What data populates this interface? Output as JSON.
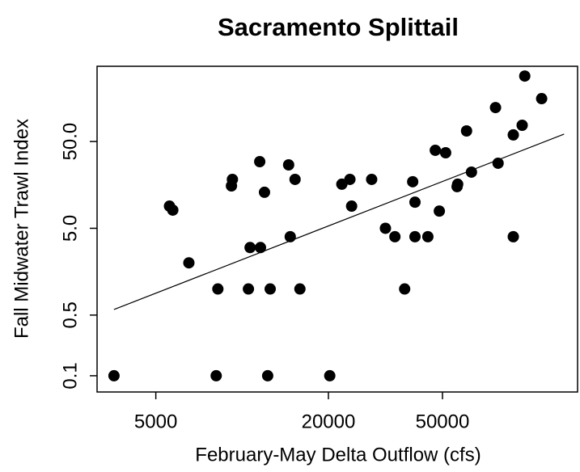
{
  "chart_data": {
    "type": "scatter",
    "title": "Sacramento Splittail",
    "x_label": "February-May Delta Outflow (cfs)",
    "y_label": "Fall Midwater Trawl Index",
    "xscale": "log",
    "yscale": "log",
    "color": "#000000",
    "x": [
      3573,
      5580,
      5730,
      6520,
      8230,
      8120,
      9180,
      9250,
      10660,
      10520,
      11520,
      11590,
      11970,
      12280,
      12530,
      14530,
      14720,
      15300,
      15910,
      20220,
      22280,
      23770,
      24100,
      28310,
      31620,
      34120,
      36900,
      39360,
      40090,
      40090,
      44460,
      47200,
      51290,
      48750,
      56230,
      56490,
      60670,
      63100,
      76560,
      78160,
      88310,
      88310,
      94840,
      96830,
      110900
    ],
    "y": [
      0.1,
      9.0,
      8.1,
      2.0,
      1.0,
      0.1,
      15.4,
      18.3,
      3.0,
      1.0,
      29.3,
      3.0,
      13.0,
      0.1,
      1.0,
      26.9,
      4.0,
      18.3,
      1.0,
      0.1,
      16.1,
      18.3,
      9.0,
      18.3,
      5.0,
      4.0,
      1.0,
      17.2,
      10.0,
      4.0,
      4.0,
      39.6,
      37.1,
      7.9,
      15.1,
      16.1,
      66.2,
      22.2,
      123,
      28.1,
      4.0,
      59.6,
      76.9,
      284,
      156
    ],
    "trend_line": {
      "x": [
        3573,
        132800
      ],
      "y": [
        0.58,
        60.8
      ]
    },
    "xlim": [
      3119,
      148000
    ],
    "ylim": [
      0.065,
      368
    ],
    "xticks": [
      5000,
      20000,
      50000
    ],
    "yticks": [
      0.1,
      0.5,
      {
        "value": 5,
        "label": "5.0"
      },
      {
        "value": 50,
        "label": "50.0"
      }
    ]
  }
}
